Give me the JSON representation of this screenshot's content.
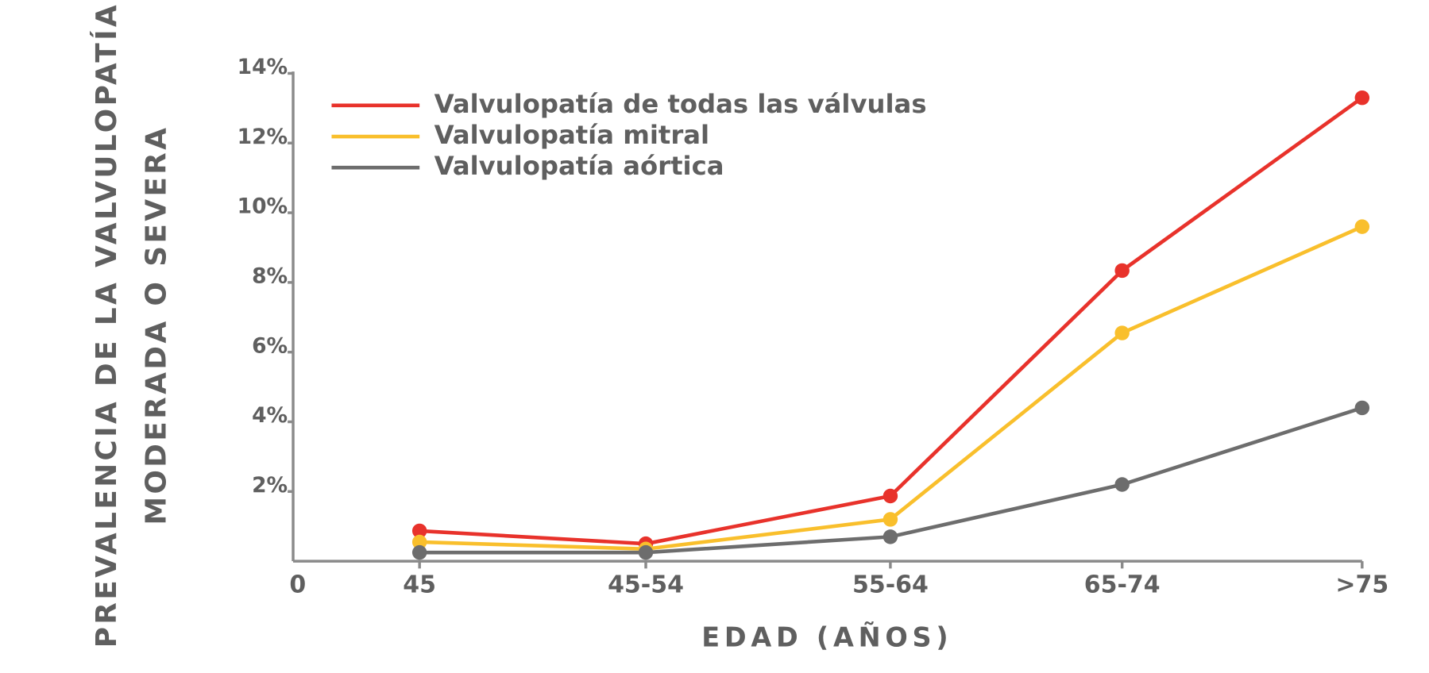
{
  "chart_data": {
    "type": "line",
    "ylabel": [
      "PREVALENCIA DE LA VALVULOPATÍA",
      "MODERADA O SEVERA"
    ],
    "xlabel": "EDAD (AÑOS)",
    "categories": [
      "45",
      "45-54",
      "55-64",
      "65-74",
      ">75"
    ],
    "series": [
      {
        "name": "Valvulopatía de todas las válvulas",
        "color": "#e8322b",
        "values": [
          0.87,
          0.5,
          1.87,
          8.34,
          13.3
        ]
      },
      {
        "name": "Valvulopatía mitral",
        "color": "#f9bf2c",
        "values": [
          0.55,
          0.35,
          1.2,
          6.55,
          9.6
        ]
      },
      {
        "name": "Valvulopatía aórtica",
        "color": "#6d6d6d",
        "values": [
          0.25,
          0.25,
          0.7,
          2.2,
          4.4
        ]
      }
    ],
    "ylim": [
      0,
      14
    ],
    "yticks": [
      0,
      {
        "value": 2,
        "label": "2%"
      },
      {
        "value": 4,
        "label": "4%"
      },
      {
        "value": 6,
        "label": "6%"
      },
      {
        "value": 8,
        "label": "8%"
      },
      {
        "value": 10,
        "label": "10%"
      },
      {
        "value": 12,
        "label": "12%"
      },
      {
        "value": 14,
        "label": "14%"
      }
    ],
    "legend": "upper left"
  }
}
